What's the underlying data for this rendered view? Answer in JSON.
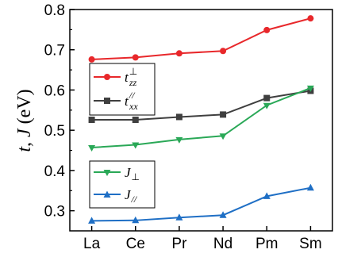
{
  "chart_data": {
    "type": "line",
    "title": "",
    "xlabel": "",
    "ylabel": "t, J (eV)",
    "ylabel_parts": {
      "t": "t",
      "comma": ", ",
      "J": "J",
      "unit": " (eV)"
    },
    "categories": [
      "La",
      "Ce",
      "Pr",
      "Nd",
      "Pm",
      "Sm"
    ],
    "ylim": [
      0.25,
      0.8
    ],
    "yticks": [
      "0.3",
      "0.4",
      "0.5",
      "0.6",
      "0.7",
      "0.8"
    ],
    "grid": false,
    "legend_placement": [
      "upper-left",
      "lower-left"
    ],
    "series": [
      {
        "name": "t_zz^⊥",
        "label_main": "t",
        "label_sup": "⊥",
        "label_sub": "zz",
        "marker": "circle",
        "color": "#e8282b",
        "values": [
          0.676,
          0.681,
          0.691,
          0.697,
          0.749,
          0.778
        ]
      },
      {
        "name": "t_xx^//",
        "label_main": "t",
        "label_sup": "//",
        "label_sub": "xx",
        "marker": "square",
        "color": "#3f3f3f",
        "values": [
          0.526,
          0.526,
          0.533,
          0.539,
          0.58,
          0.598
        ]
      },
      {
        "name": "J_⊥",
        "label_main": "J",
        "label_sub": "⊥",
        "marker": "triangle-down",
        "color": "#2aa857",
        "values": [
          0.457,
          0.464,
          0.477,
          0.486,
          0.562,
          0.605
        ]
      },
      {
        "name": "J_//",
        "label_main": "J",
        "label_sub": "//",
        "marker": "triangle-up",
        "color": "#1f6fc5",
        "values": [
          0.275,
          0.276,
          0.283,
          0.289,
          0.336,
          0.357
        ]
      }
    ]
  }
}
